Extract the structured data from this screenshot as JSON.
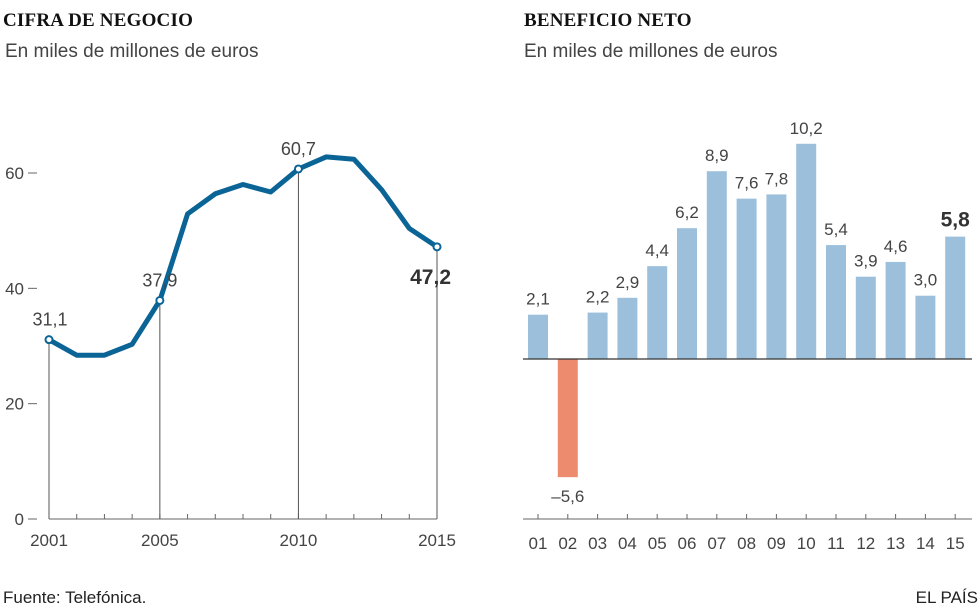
{
  "footer": {
    "source": "Fuente: Telefónica.",
    "brand": "EL PAÍS"
  },
  "colors": {
    "line": "#0b6496",
    "bar_pos": "#9cc0dc",
    "bar_neg": "#ec8b6e",
    "axis": "#666666"
  },
  "chart_data": [
    {
      "type": "line",
      "title": "CIFRA DE NEGOCIO",
      "subtitle": "En miles de millones de euros",
      "x": [
        2001,
        2002,
        2003,
        2004,
        2005,
        2006,
        2007,
        2008,
        2009,
        2010,
        2011,
        2012,
        2013,
        2014,
        2015
      ],
      "values": [
        31.1,
        28.4,
        28.4,
        30.3,
        37.9,
        52.9,
        56.4,
        58.0,
        56.7,
        60.7,
        62.8,
        62.4,
        57.1,
        50.4,
        47.2
      ],
      "ylim": [
        0,
        60
      ],
      "yticks": [
        0,
        20,
        40,
        60
      ],
      "xtick_labels": [
        "2001",
        "2005",
        "2010",
        "2015"
      ],
      "annotations": [
        {
          "x": 2001,
          "label": "31,1"
        },
        {
          "x": 2005,
          "label": "37,9"
        },
        {
          "x": 2010,
          "label": "60,7"
        },
        {
          "x": 2015,
          "label": "47,2",
          "bold": true
        }
      ]
    },
    {
      "type": "bar",
      "title": "BENEFICIO NETO",
      "subtitle": "En miles de millones de euros",
      "categories": [
        "01",
        "02",
        "03",
        "04",
        "05",
        "06",
        "07",
        "08",
        "09",
        "10",
        "11",
        "12",
        "13",
        "14",
        "15"
      ],
      "values": [
        2.1,
        -5.6,
        2.2,
        2.9,
        4.4,
        6.2,
        8.9,
        7.6,
        7.8,
        10.2,
        5.4,
        3.9,
        4.6,
        3.0,
        5.8
      ],
      "labels": [
        "2,1",
        "–5,6",
        "2,2",
        "2,9",
        "4,4",
        "6,2",
        "8,9",
        "7,6",
        "7,8",
        "10,2",
        "5,4",
        "3,9",
        "4,6",
        "3,0",
        "5,8"
      ],
      "bold_last": true
    }
  ]
}
